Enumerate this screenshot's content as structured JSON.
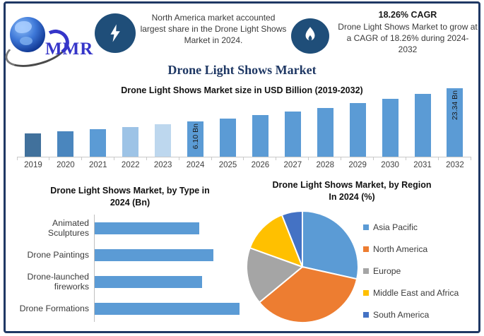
{
  "header": {
    "logo_text": "MMR",
    "left_callout": "North America market accounted largest share in the Drone Light Shows Market in 2024.",
    "right_callout_title": "18.26% CAGR",
    "right_callout_text": "Drone Light Shows Market to grow at a CAGR of 18.26% during 2024-2032",
    "icons": [
      "lightning-icon",
      "flame-icon"
    ]
  },
  "page_title": "Drone Light Shows Market",
  "colors": {
    "frame": "#1F3864",
    "badge": "#1F4E79",
    "bar_default": "#5B9BD5",
    "axis": "#C9C9C9"
  },
  "chart_data": [
    {
      "type": "bar",
      "title": "Drone Light Shows Market size in USD Billion (2019-2032)",
      "ylabel": "USD Billion",
      "categories": [
        "2019",
        "2020",
        "2021",
        "2022",
        "2023",
        "2024",
        "2025",
        "2026",
        "2027",
        "2028",
        "2029",
        "2030",
        "2031",
        "2032"
      ],
      "values": [
        2.64,
        3.12,
        3.69,
        4.36,
        5.16,
        6.1,
        7.21,
        8.53,
        10.09,
        11.93,
        14.11,
        16.69,
        19.74,
        23.34
      ],
      "values_note": "2024 and 2032 labeled on chart; other years estimated from 18.26% CAGR",
      "data_labels": {
        "2024": "6.10 Bn",
        "2032": "23.34 Bn"
      },
      "bar_colors": {
        "2019": "#41719C",
        "2020": "#4A86BE",
        "2022": "#9DC3E6",
        "2023": "#BDD7EE"
      },
      "grid": false
    },
    {
      "type": "bar",
      "orientation": "horizontal",
      "title": "Drone Light Shows Market, by Type in 2024 (Bn)",
      "title_lines": [
        "Drone Light Shows Market, by Type in",
        "2024 (Bn)"
      ],
      "categories": [
        "Animated Sculptures",
        "Drone Paintings",
        "Drone-launched fireworks",
        "Drone Formations"
      ],
      "values": [
        1.34,
        1.52,
        1.38,
        1.86
      ],
      "values_note": "estimated from relative bar lengths; no axis values shown",
      "bar_color": "#5B9BD5",
      "grid": false
    },
    {
      "type": "pie",
      "title": "Drone Light Shows Market, by Region In 2024 (%)",
      "title_lines": [
        "Drone Light Shows Market, by Region",
        "In 2024 (%)"
      ],
      "labels": [
        "Asia Pacific",
        "North America",
        "Europe",
        "Middle East and Africa",
        "South America"
      ],
      "values": [
        28.5,
        35.5,
        16.5,
        13.5,
        6.0
      ],
      "values_note": "estimated from slice angles; no percentages printed",
      "colors": [
        "#5B9BD5",
        "#ED7D31",
        "#A5A5A5",
        "#FFC000",
        "#4472C4"
      ],
      "legend_position": "right",
      "start_angle_deg": 0,
      "direction": "clockwise"
    }
  ]
}
